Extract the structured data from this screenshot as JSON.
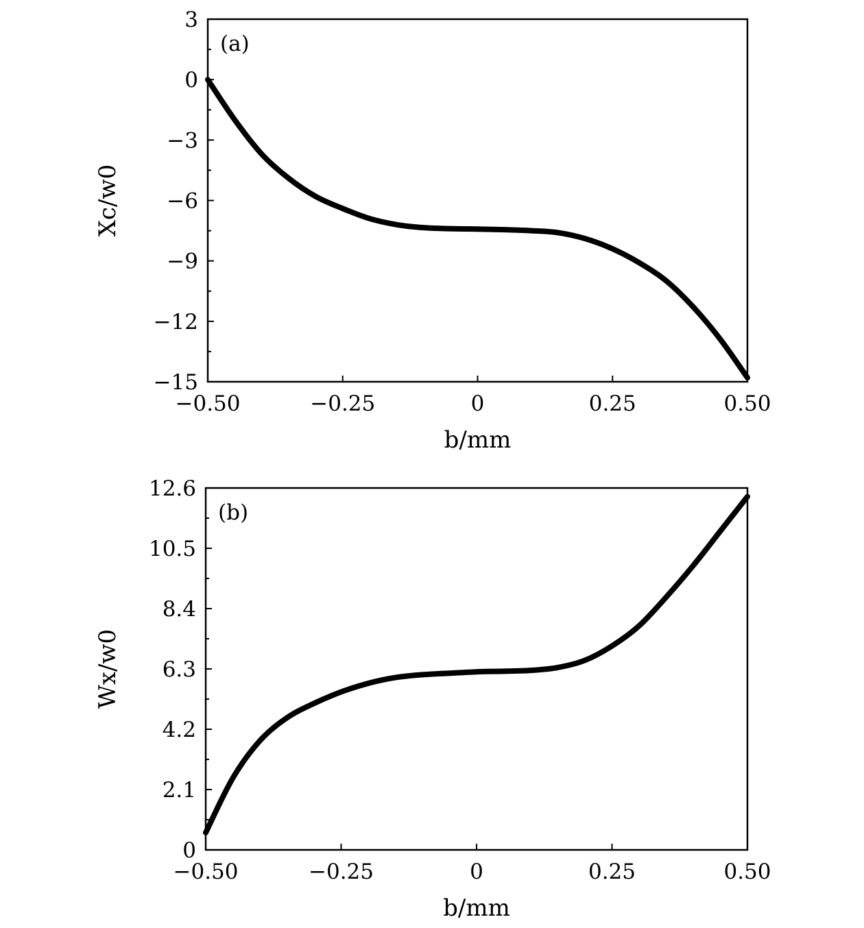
{
  "chart_data": [
    {
      "type": "line",
      "panel_label": "(a)",
      "xlabel": "b/mm",
      "ylabel": "Xc/w0",
      "xlim": [
        -0.5,
        0.5
      ],
      "ylim": [
        -15,
        3
      ],
      "xticks": [
        -0.5,
        -0.25,
        0,
        0.25,
        0.5
      ],
      "xtick_labels": [
        "−0.50",
        "−0.25",
        "0",
        "0.25",
        "0.50"
      ],
      "yticks": [
        3,
        0,
        -3,
        -6,
        -9,
        -12,
        -15
      ],
      "ytick_labels": [
        "3",
        "0",
        "−3",
        "−6",
        "−9",
        "−12",
        "−15"
      ],
      "grid": false,
      "line_color": "#000000",
      "x": [
        -0.5,
        -0.45,
        -0.4,
        -0.35,
        -0.3,
        -0.25,
        -0.2,
        -0.15,
        -0.1,
        -0.05,
        0,
        0.05,
        0.1,
        0.15,
        0.2,
        0.25,
        0.3,
        0.35,
        0.4,
        0.45,
        0.5
      ],
      "y": [
        0,
        -2.0,
        -3.7,
        -4.9,
        -5.8,
        -6.4,
        -6.9,
        -7.2,
        -7.35,
        -7.4,
        -7.42,
        -7.45,
        -7.5,
        -7.6,
        -7.9,
        -8.4,
        -9.1,
        -10.0,
        -11.3,
        -12.9,
        -14.8
      ]
    },
    {
      "type": "line",
      "panel_label": "(b)",
      "xlabel": "b/mm",
      "ylabel": "Wx/w0",
      "xlim": [
        -0.5,
        0.5
      ],
      "ylim": [
        0,
        12.6
      ],
      "xticks": [
        -0.5,
        -0.25,
        0,
        0.25,
        0.5
      ],
      "xtick_labels": [
        "−0.50",
        "−0.25",
        "0",
        "0.25",
        "0.50"
      ],
      "yticks": [
        12.6,
        10.5,
        8.4,
        6.3,
        4.2,
        2.1,
        0
      ],
      "ytick_labels": [
        "12.6",
        "10.5",
        "8.4",
        "6.3",
        "4.2",
        "2.1",
        "0"
      ],
      "grid": false,
      "line_color": "#000000",
      "x": [
        -0.5,
        -0.45,
        -0.4,
        -0.35,
        -0.3,
        -0.25,
        -0.2,
        -0.15,
        -0.1,
        -0.05,
        0,
        0.05,
        0.1,
        0.15,
        0.2,
        0.25,
        0.3,
        0.35,
        0.4,
        0.45,
        0.5
      ],
      "y": [
        0.6,
        2.5,
        3.8,
        4.6,
        5.1,
        5.5,
        5.8,
        6.0,
        6.1,
        6.15,
        6.2,
        6.22,
        6.25,
        6.35,
        6.6,
        7.1,
        7.8,
        8.8,
        9.9,
        11.1,
        12.3
      ]
    }
  ]
}
